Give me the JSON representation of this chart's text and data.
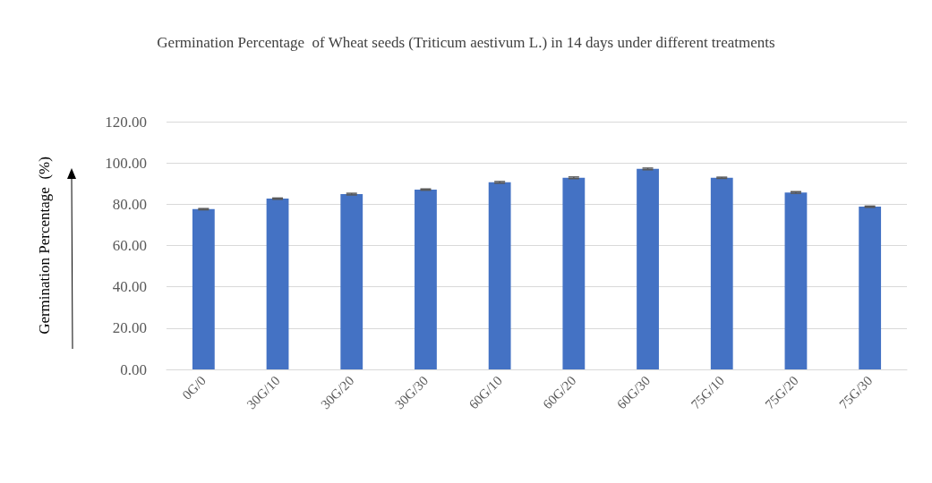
{
  "chart_data": {
    "type": "bar",
    "title": "Germination Percentage  of Wheat seeds (Triticum aestivum L.) in 14 days under different treatments",
    "ylabel": "Germination Percentage  (%)",
    "categories": [
      "0G/0",
      "30G/10",
      "30G/20",
      "30G/30",
      "60G/10",
      "60G/20",
      "60G/30",
      "75G/10",
      "75G/20",
      "75G/30"
    ],
    "values": [
      77.6,
      82.7,
      84.9,
      87.1,
      90.6,
      92.8,
      97.1,
      92.8,
      85.7,
      78.8
    ],
    "errors": [
      0.3,
      0.3,
      0.4,
      0.3,
      0.4,
      0.4,
      0.4,
      0.3,
      0.4,
      0.3
    ],
    "color": "#4472c4",
    "ylim": [
      0,
      120
    ],
    "yticks": [
      {
        "value": 0,
        "label": "0.00"
      },
      {
        "value": 20,
        "label": "20.00"
      },
      {
        "value": 40,
        "label": "40.00"
      },
      {
        "value": 60,
        "label": "60.00"
      },
      {
        "value": 80,
        "label": "80.00"
      },
      {
        "value": 100,
        "label": "100.00"
      },
      {
        "value": 120,
        "label": "120.00"
      }
    ],
    "grid": "y"
  }
}
